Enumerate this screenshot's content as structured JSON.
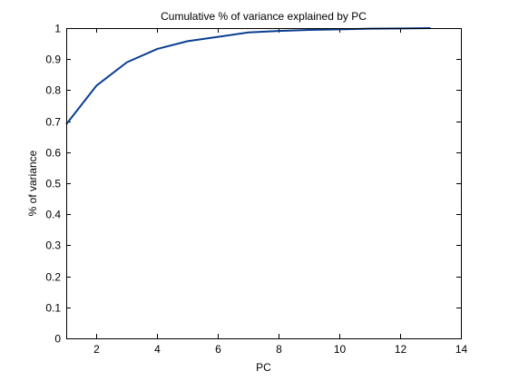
{
  "chart_data": {
    "type": "line",
    "title": "Cumulative % of variance explained by PC",
    "xlabel": "PC",
    "ylabel": "% of variance",
    "xlim": [
      1,
      14
    ],
    "ylim": [
      0,
      1
    ],
    "xticks": [
      2,
      4,
      6,
      8,
      10,
      12,
      14
    ],
    "yticks": [
      0,
      0.1,
      0.2,
      0.3,
      0.4,
      0.5,
      0.6,
      0.7,
      0.8,
      0.9,
      1
    ],
    "ytick_labels": [
      "0",
      "0.1",
      "0.2",
      "0.3",
      "0.4",
      "0.5",
      "0.6",
      "0.7",
      "0.8",
      "0.9",
      "1"
    ],
    "grid": false,
    "series": [
      {
        "color": "#0a3d91",
        "x": [
          1,
          2,
          3,
          4,
          5,
          6,
          7,
          8,
          9,
          10,
          11,
          12,
          13
        ],
        "values": [
          0.69,
          0.815,
          0.89,
          0.933,
          0.958,
          0.972,
          0.986,
          0.991,
          0.994,
          0.996,
          0.998,
          0.999,
          1.0
        ]
      }
    ]
  }
}
